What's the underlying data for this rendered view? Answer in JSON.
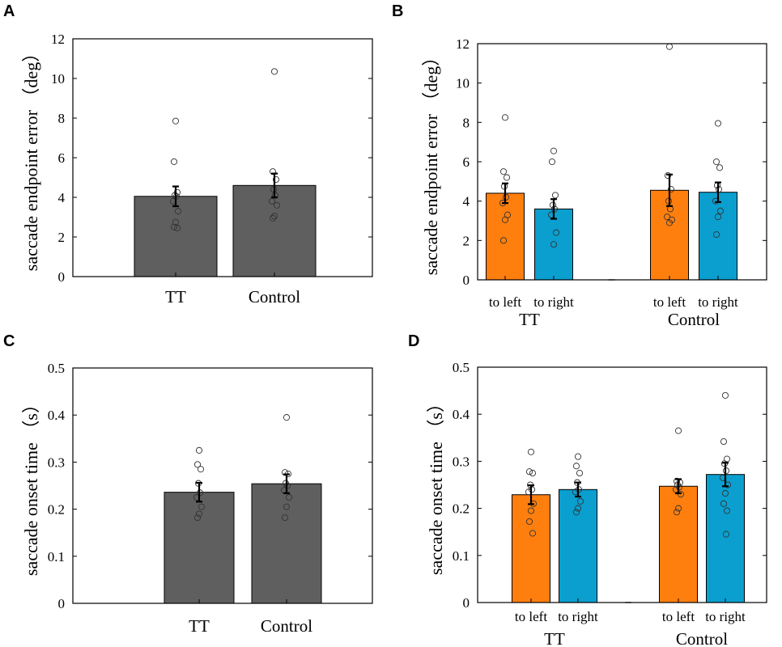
{
  "colors": {
    "gray_bar": "#5f5f5f",
    "left_bar": "#ff7f0e",
    "right_bar": "#0a9fcf",
    "axis": "#000000",
    "dot": "#333333"
  },
  "chart_data": [
    {
      "panel": "A",
      "type": "bar",
      "ylabel": "saccade endpoint error （deg）",
      "ylim": [
        0,
        12
      ],
      "yticks": [
        "0",
        "2",
        "4",
        "6",
        "8",
        "10",
        "12"
      ],
      "ytick_values": [
        0,
        2,
        4,
        6,
        8,
        10,
        12
      ],
      "grouped": false,
      "categories": [
        "TT",
        "Control"
      ],
      "values": [
        4.05,
        4.6
      ],
      "errors": [
        0.5,
        0.6
      ],
      "points": [
        [
          7.85,
          5.8,
          4.25,
          4.1,
          4.05,
          3.8,
          3.3,
          2.75,
          2.5,
          2.45
        ],
        [
          10.35,
          5.3,
          4.9,
          4.4,
          4.1,
          3.8,
          3.6,
          3.05,
          2.95
        ]
      ]
    },
    {
      "panel": "B",
      "type": "bar",
      "ylabel": "saccade endpoint error （deg）",
      "ylim": [
        0,
        12
      ],
      "yticks": [
        "0",
        "2",
        "4",
        "6",
        "8",
        "10",
        "12"
      ],
      "ytick_values": [
        0,
        2,
        4,
        6,
        8,
        10,
        12
      ],
      "grouped": true,
      "categories": [
        "TT",
        "Control"
      ],
      "series": [
        {
          "name": "to left",
          "values": [
            4.4,
            4.55
          ],
          "errors": [
            0.5,
            0.8
          ],
          "points": [
            [
              8.25,
              5.5,
              5.2,
              4.75,
              4.2,
              3.9,
              3.3,
              3.05,
              2.0
            ],
            [
              11.85,
              5.3,
              4.6,
              4.0,
              3.6,
              3.2,
              3.05,
              2.9
            ]
          ]
        },
        {
          "name": "to right",
          "values": [
            3.6,
            4.45
          ],
          "errors": [
            0.5,
            0.5
          ],
          "points": [
            [
              6.55,
              6.0,
              4.3,
              3.8,
              3.6,
              3.3,
              2.4,
              1.8
            ],
            [
              7.95,
              6.0,
              5.7,
              4.8,
              4.6,
              4.0,
              3.5,
              3.2,
              2.3
            ]
          ]
        }
      ]
    },
    {
      "panel": "C",
      "type": "bar",
      "ylabel": "saccade onset time （s）",
      "ylim": [
        0,
        0.5
      ],
      "yticks": [
        "0",
        "0.1",
        "0.2",
        "0.3",
        "0.4",
        "0.5"
      ],
      "ytick_values": [
        0,
        0.1,
        0.2,
        0.3,
        0.4,
        0.5
      ],
      "grouped": false,
      "categories": [
        "TT",
        "Control"
      ],
      "values": [
        0.236,
        0.254
      ],
      "errors": [
        0.02,
        0.02
      ],
      "points": [
        [
          0.325,
          0.295,
          0.285,
          0.255,
          0.235,
          0.225,
          0.205,
          0.19,
          0.182
        ],
        [
          0.395,
          0.278,
          0.275,
          0.255,
          0.25,
          0.24,
          0.225,
          0.205,
          0.182
        ]
      ]
    },
    {
      "panel": "D",
      "type": "bar",
      "ylabel": "saccade onset time （s）",
      "ylim": [
        0,
        0.5
      ],
      "yticks": [
        "0",
        "0.1",
        "0.2",
        "0.3",
        "0.4",
        "0.5"
      ],
      "ytick_values": [
        0,
        0.1,
        0.2,
        0.3,
        0.4,
        0.5
      ],
      "grouped": true,
      "categories": [
        "TT",
        "Control"
      ],
      "series": [
        {
          "name": "to left",
          "values": [
            0.229,
            0.247
          ],
          "errors": [
            0.02,
            0.015
          ],
          "points": [
            [
              0.32,
              0.278,
              0.275,
              0.25,
              0.24,
              0.235,
              0.21,
              0.195,
              0.172,
              0.147
            ],
            [
              0.365,
              0.258,
              0.255,
              0.25,
              0.245,
              0.24,
              0.23,
              0.2,
              0.192
            ]
          ]
        },
        {
          "name": "to right",
          "values": [
            0.24,
            0.272
          ],
          "errors": [
            0.015,
            0.025
          ],
          "points": [
            [
              0.31,
              0.29,
              0.275,
              0.255,
              0.24,
              0.235,
              0.215,
              0.2,
              0.192
            ],
            [
              0.44,
              0.342,
              0.305,
              0.295,
              0.28,
              0.265,
              0.25,
              0.232,
              0.21,
              0.195,
              0.145
            ]
          ]
        }
      ]
    }
  ]
}
